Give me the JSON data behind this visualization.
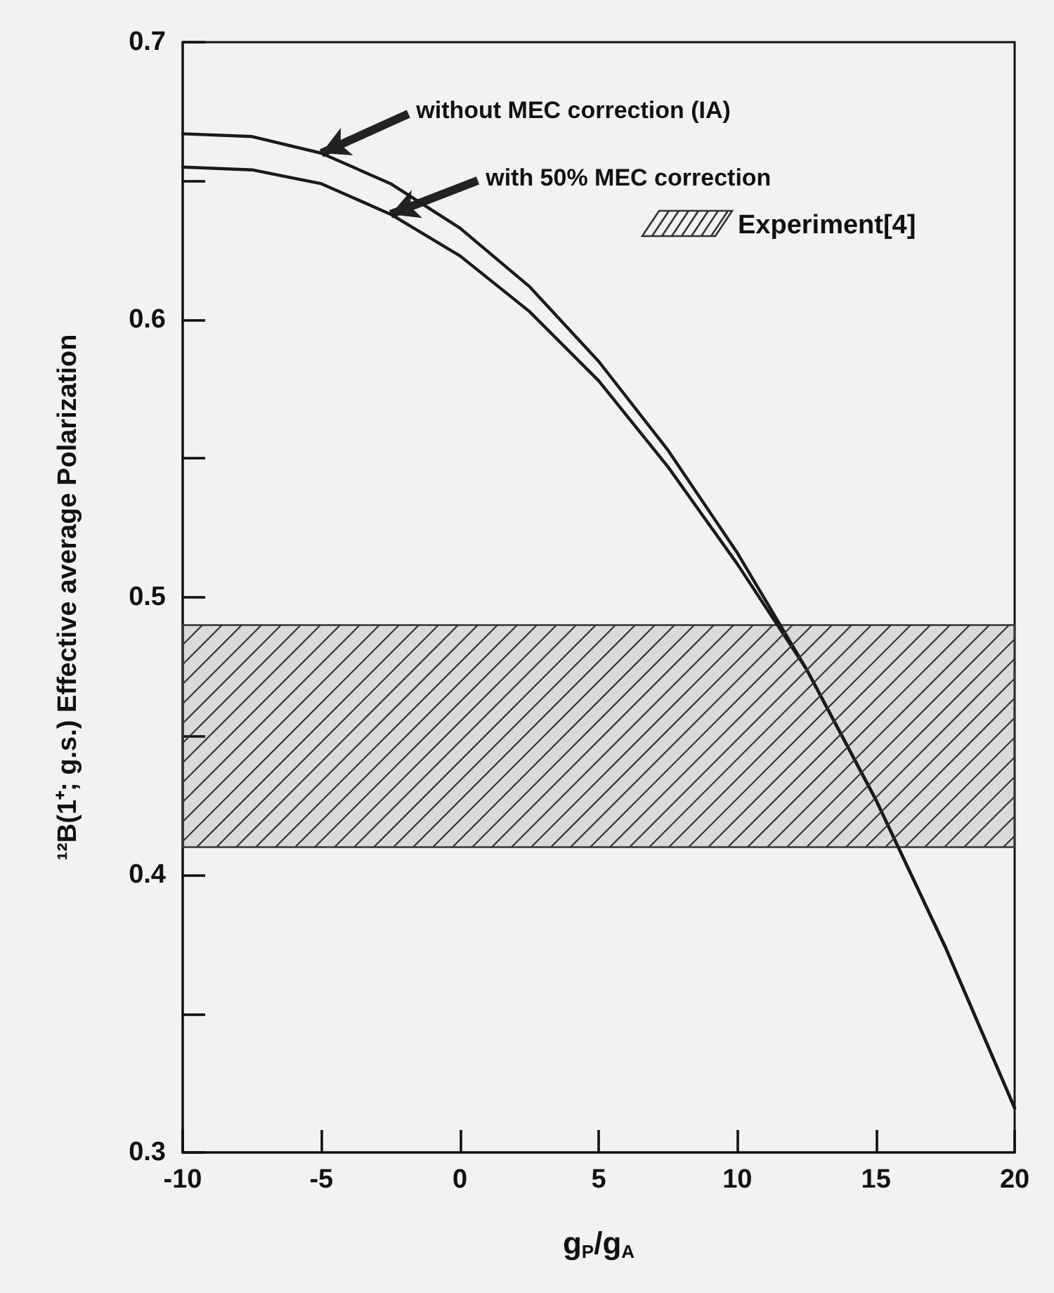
{
  "chart_data": {
    "type": "line",
    "xlabel": "g$_{P}$/g$_{A}$",
    "ylabel": "¹²B(1⁺; g.s.) Effective average Polarization",
    "x": [
      -10,
      -7.5,
      -5,
      -2.5,
      0,
      2.5,
      5,
      7.5,
      10,
      12.5,
      15,
      17.5,
      20
    ],
    "series": [
      {
        "color": "#1a1a1a",
        "values": [
          0.667,
          0.666,
          0.66,
          0.649,
          0.633,
          0.612,
          0.585,
          0.553,
          0.516,
          0.474,
          0.427,
          0.374,
          0.316
        ]
      },
      {
        "color": "#1a1a1a",
        "values": [
          0.655,
          0.654,
          0.649,
          0.638,
          0.623,
          0.603,
          0.578,
          0.547,
          0.512,
          0.474,
          0.427,
          0.374,
          0.316
        ]
      }
    ],
    "xlim": [
      -10,
      20
    ],
    "xticks": [
      -10,
      -5,
      0,
      5,
      10,
      15,
      20
    ],
    "ylim": [
      0.3,
      0.7
    ],
    "yticks": [
      0.3,
      {
        "value": 0.35,
        "label": null
      },
      0.4,
      {
        "value": 0.45,
        "label": null
      },
      0.5,
      {
        "value": 0.55,
        "label": null
      },
      0.6,
      {
        "value": 0.65,
        "label": null
      },
      0.7
    ],
    "bands": [
      {
        "axis": "y",
        "from": 0.41,
        "to": 0.49,
        "label": "Experiment[4]",
        "color": "#333333"
      }
    ],
    "annotations": [
      {
        "text": "without MEC correction (IA)",
        "x": -5,
        "y": 0.66
      },
      {
        "text": "with 50% MEC correction",
        "x": -2.5,
        "y": 0.638
      }
    ],
    "grid": false,
    "legend": "top right",
    "marker": "none",
    "line_style": "solid"
  }
}
